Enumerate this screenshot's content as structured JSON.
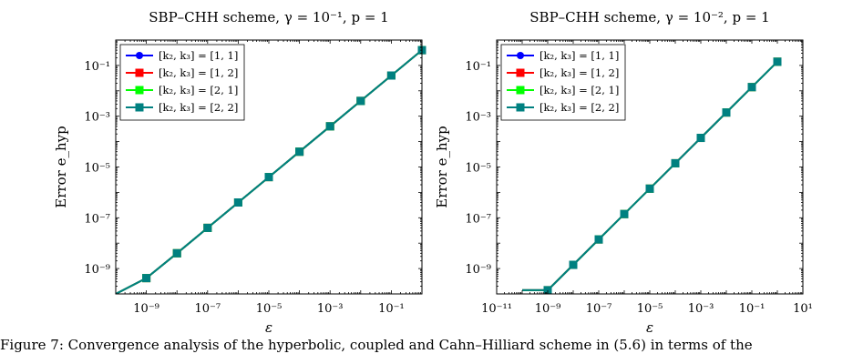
{
  "caption": "Figure 7: Convergence analysis of the hyperbolic, coupled and Cahn–Hilliard scheme in (5.6) in terms of the",
  "colors": {
    "s11": "#0000ff",
    "s12": "#ff0000",
    "s21": "#00ff00",
    "s22": "#008080",
    "axis": "#000000"
  },
  "chart_data": [
    {
      "type": "line",
      "title": "SBP–CHH scheme, γ = 10⁻¹, p = 1",
      "xlabel": "ε",
      "ylabel": "Error e_hyp",
      "xscale": "log",
      "yscale": "log",
      "xlim": [
        1e-10,
        1
      ],
      "ylim": [
        1e-10,
        1
      ],
      "xticks": [
        1e-09,
        1e-07,
        1e-05,
        0.001,
        0.1
      ],
      "xtick_labels": [
        "10⁻⁹",
        "10⁻⁷",
        "10⁻⁵",
        "10⁻³",
        "10⁻¹"
      ],
      "yticks": [
        1e-09,
        1e-07,
        1e-05,
        0.001,
        0.1
      ],
      "ytick_labels": [
        "10⁻⁹",
        "10⁻⁷",
        "10⁻⁵",
        "10⁻³",
        "10⁻¹"
      ],
      "grid": false,
      "legend_position": "top-left",
      "x": [
        1e-10,
        1e-09,
        1e-08,
        1e-07,
        1e-06,
        1e-05,
        0.0001,
        0.001,
        0.01,
        0.1,
        1
      ],
      "series": [
        {
          "name": "[k₂, k₃] = [1, 1]",
          "marker": "circle",
          "color": "#0000ff",
          "values": [
            1e-10,
            4.2e-10,
            4e-09,
            4e-08,
            4e-07,
            4e-06,
            4e-05,
            0.0004,
            0.004,
            0.04,
            0.4
          ]
        },
        {
          "name": "[k₂, k₃] = [1, 2]",
          "marker": "square",
          "color": "#ff0000",
          "values": [
            1e-10,
            4.2e-10,
            4e-09,
            4e-08,
            4e-07,
            4e-06,
            4e-05,
            0.0004,
            0.004,
            0.04,
            0.4
          ]
        },
        {
          "name": "[k₂, k₃] = [2, 1]",
          "marker": "square",
          "color": "#00ff00",
          "values": [
            1e-10,
            4.2e-10,
            4e-09,
            4e-08,
            4e-07,
            4e-06,
            4e-05,
            0.0004,
            0.004,
            0.04,
            0.4
          ]
        },
        {
          "name": "[k₂, k₃] = [2, 2]",
          "marker": "square",
          "color": "#008080",
          "values": [
            1e-10,
            4.2e-10,
            4e-09,
            4e-08,
            4e-07,
            4e-06,
            4e-05,
            0.0004,
            0.004,
            0.04,
            0.4
          ]
        }
      ]
    },
    {
      "type": "line",
      "title": "SBP–CHH scheme, γ = 10⁻², p = 1",
      "xlabel": "ε",
      "ylabel": "Error e_hyp",
      "xscale": "log",
      "yscale": "log",
      "xlim": [
        1e-11,
        10
      ],
      "ylim": [
        1e-10,
        1
      ],
      "xticks": [
        1e-11,
        1e-09,
        1e-07,
        1e-05,
        0.001,
        0.1,
        10
      ],
      "xtick_labels": [
        "10⁻¹¹",
        "10⁻⁹",
        "10⁻⁷",
        "10⁻⁵",
        "10⁻³",
        "10⁻¹",
        "10¹"
      ],
      "yticks": [
        1e-09,
        1e-07,
        1e-05,
        0.001,
        0.1
      ],
      "ytick_labels": [
        "10⁻⁹",
        "10⁻⁷",
        "10⁻⁵",
        "10⁻³",
        "10⁻¹"
      ],
      "grid": false,
      "legend_position": "top-left",
      "x": [
        1e-10,
        1e-09,
        1e-08,
        1e-07,
        1e-06,
        1e-05,
        0.0001,
        0.001,
        0.01,
        0.1,
        1
      ],
      "series": [
        {
          "name": "[k₂, k₃] = [1, 1]",
          "marker": "circle",
          "color": "#0000ff",
          "values": [
            1.4e-10,
            1.4e-10,
            1.4e-09,
            1.4e-08,
            1.4e-07,
            1.4e-06,
            1.4e-05,
            0.00014,
            0.0014,
            0.014,
            0.14
          ]
        },
        {
          "name": "[k₂, k₃] = [1, 2]",
          "marker": "square",
          "color": "#ff0000",
          "values": [
            1.4e-10,
            1.4e-10,
            1.4e-09,
            1.4e-08,
            1.4e-07,
            1.4e-06,
            1.4e-05,
            0.00014,
            0.0014,
            0.014,
            0.14
          ]
        },
        {
          "name": "[k₂, k₃] = [2, 1]",
          "marker": "square",
          "color": "#00ff00",
          "values": [
            1.4e-10,
            1.4e-10,
            1.4e-09,
            1.4e-08,
            1.4e-07,
            1.4e-06,
            1.4e-05,
            0.00014,
            0.0014,
            0.014,
            0.14
          ]
        },
        {
          "name": "[k₂, k₃] = [2, 2]",
          "marker": "square",
          "color": "#008080",
          "values": [
            1.4e-10,
            1.4e-10,
            1.4e-09,
            1.4e-08,
            1.4e-07,
            1.4e-06,
            1.4e-05,
            0.00014,
            0.0014,
            0.014,
            0.14
          ]
        }
      ]
    }
  ]
}
